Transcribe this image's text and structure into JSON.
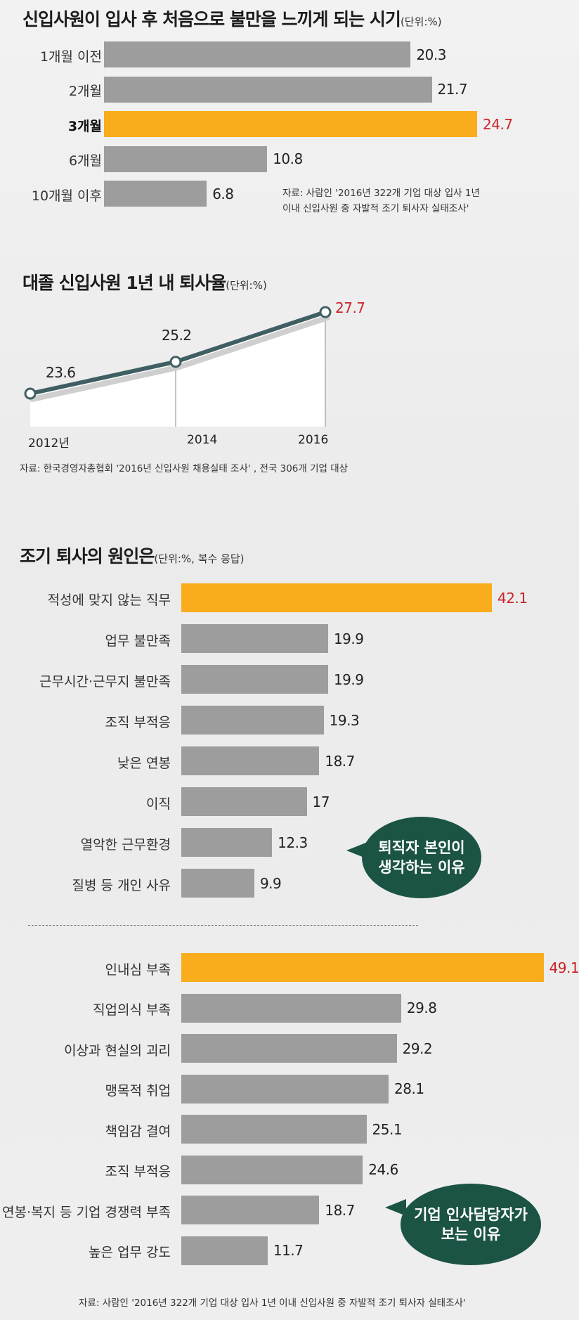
{
  "chart_data": [
    {
      "type": "bar",
      "title": "신입사원이 입사 후 처음으로 불만을 느끼게 되는 시기",
      "unit": "(단위:%)",
      "categories": [
        "1개월 이전",
        "2개월",
        "3개월",
        "6개월",
        "10개월 이후"
      ],
      "values": [
        20.3,
        21.7,
        24.7,
        10.8,
        6.8
      ],
      "highlight_index": 2,
      "source": [
        "자료: 사람인 '2016년 322개 기업 대상 입사 1년",
        "이내 신입사원 중 자발적 조기 퇴사자 실태조사'"
      ]
    },
    {
      "type": "line",
      "title": "대졸 신입사원 1년 내 퇴사율",
      "unit": "(단위:%)",
      "x": [
        "2012년",
        "2014",
        "2016"
      ],
      "values": [
        23.6,
        25.2,
        27.7
      ],
      "highlight_index": 2,
      "source": "자료: 한국경영자총협회 '2016년 신입사원 채용실태 조사' , 전국 306개 기업 대상"
    },
    {
      "type": "bar",
      "title": "조기 퇴사의 원인은",
      "unit": "(단위:%, 복수 응답)",
      "groups": [
        {
          "bubble": [
            "퇴직자 본인이",
            "생각하는 이유"
          ],
          "categories": [
            "적성에 맞지 않는 직무",
            "업무 불만족",
            "근무시간·근무지 불만족",
            "조직 부적응",
            "낮은 연봉",
            "이직",
            "열악한 근무환경",
            "질병 등 개인 사유"
          ],
          "values": [
            42.1,
            19.9,
            19.9,
            19.3,
            18.7,
            17,
            12.3,
            9.9
          ],
          "highlight_index": 0
        },
        {
          "bubble": [
            "기업 인사담당자가",
            "보는 이유"
          ],
          "categories": [
            "인내심 부족",
            "직업의식 부족",
            "이상과 현실의 괴리",
            "맹목적 취업",
            "책임감 결여",
            "조직 부적응",
            "연봉·복지 등 기업 경쟁력 부족",
            "높은 업무 강도"
          ],
          "values": [
            49.1,
            29.8,
            29.2,
            28.1,
            25.1,
            24.6,
            18.7,
            11.7
          ],
          "highlight_index": 0
        }
      ],
      "source": "자료: 사람인 '2016년 322개 기업 대상 입사 1년 이내 신입사원 중 자발적 조기 퇴사자 실태조사'"
    }
  ]
}
